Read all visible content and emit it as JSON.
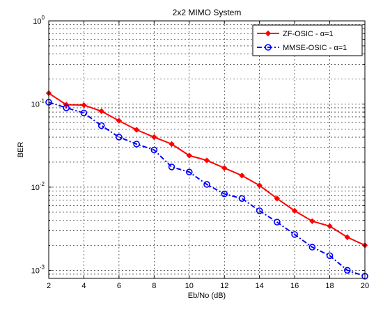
{
  "chart_data": {
    "type": "line",
    "title": "2x2 MIMO System",
    "xlabel": "Eb/No (dB)",
    "ylabel": "BER",
    "xlim": [
      2,
      20
    ],
    "ylim": [
      0.0008,
      1
    ],
    "yscale": "log",
    "grid": true,
    "legend_position": "top-right",
    "x_ticks": [
      "2",
      "4",
      "6",
      "8",
      "10",
      "12",
      "14",
      "16",
      "18",
      "20"
    ],
    "y_ticks": [
      {
        "base": "10",
        "exp": "0",
        "value": 1
      },
      {
        "base": "10",
        "exp": "-1",
        "value": 0.1
      },
      {
        "base": "10",
        "exp": "-2",
        "value": 0.01
      },
      {
        "base": "10",
        "exp": "-3",
        "value": 0.001
      }
    ],
    "x": [
      2,
      3,
      4,
      5,
      6,
      7,
      8,
      9,
      10,
      11,
      12,
      13,
      14,
      15,
      16,
      17,
      18,
      19,
      20
    ],
    "series": [
      {
        "name": "ZF-OSIC - α=1",
        "color": "#ff0000",
        "line_style": "solid",
        "marker": "diamond",
        "x": [
          2,
          3,
          4,
          5,
          6,
          7,
          8,
          9,
          10,
          11,
          12,
          13,
          14,
          15,
          16,
          17,
          18,
          19,
          20
        ],
        "values": [
          0.135,
          0.098,
          0.097,
          0.082,
          0.063,
          0.049,
          0.04,
          0.033,
          0.024,
          0.021,
          0.017,
          0.0138,
          0.0105,
          0.0073,
          0.0052,
          0.0039,
          0.0034,
          0.0025,
          0.002
        ]
      },
      {
        "name": "MMSE-OSIC - α=1",
        "color": "#0000ff",
        "line_style": "dash-dot",
        "marker": "circle",
        "x": [
          2,
          3,
          4,
          5,
          6,
          7,
          8,
          9,
          10,
          11,
          12,
          13,
          14,
          15,
          16,
          17,
          18,
          19,
          20
        ],
        "values": [
          0.105,
          0.09,
          0.078,
          0.055,
          0.04,
          0.033,
          0.028,
          0.0175,
          0.0152,
          0.0108,
          0.0083,
          0.0073,
          0.0052,
          0.0038,
          0.0027,
          0.0019,
          0.0015,
          0.001,
          0.00085
        ]
      }
    ]
  }
}
